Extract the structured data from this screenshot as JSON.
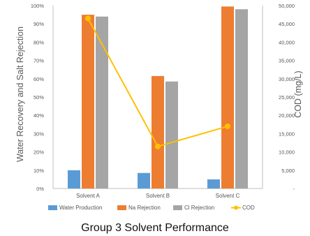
{
  "chart_data": {
    "type": "bar",
    "title": "",
    "caption": "Group 3 Solvent Performance",
    "categories": [
      "Solvent A",
      "Solvent B",
      "Solvent C"
    ],
    "series": [
      {
        "name": "Water Production",
        "kind": "bar",
        "axis": "left",
        "color": "#5B9BD5",
        "values": [
          10,
          8.5,
          5
        ]
      },
      {
        "name": "Na Rejection",
        "kind": "bar",
        "axis": "left",
        "color": "#ED7D31",
        "values": [
          95,
          61.5,
          99.5
        ]
      },
      {
        "name": "Cl Rejection",
        "kind": "bar",
        "axis": "left",
        "color": "#A5A5A5",
        "values": [
          94,
          58.5,
          98
        ]
      },
      {
        "name": "COD",
        "kind": "line",
        "axis": "right",
        "color": "#FFC000",
        "values": [
          46500,
          11500,
          17000
        ]
      }
    ],
    "ylabel": "Water Recovery and Salt Rejection",
    "ylim": [
      0,
      100
    ],
    "yticks": [
      "0%",
      "10%",
      "20%",
      "30%",
      "40%",
      "50%",
      "60%",
      "70%",
      "80%",
      "90%",
      "100%"
    ],
    "y2label": "COD (mg/L)",
    "y2lim": [
      0,
      50000
    ],
    "y2ticks": [
      "-",
      "5,000",
      "10,000",
      "15,000",
      "20,000",
      "25,000",
      "30,000",
      "35,000",
      "40,000",
      "45,000",
      "50,000"
    ],
    "grid": false,
    "legend": "bottom"
  }
}
